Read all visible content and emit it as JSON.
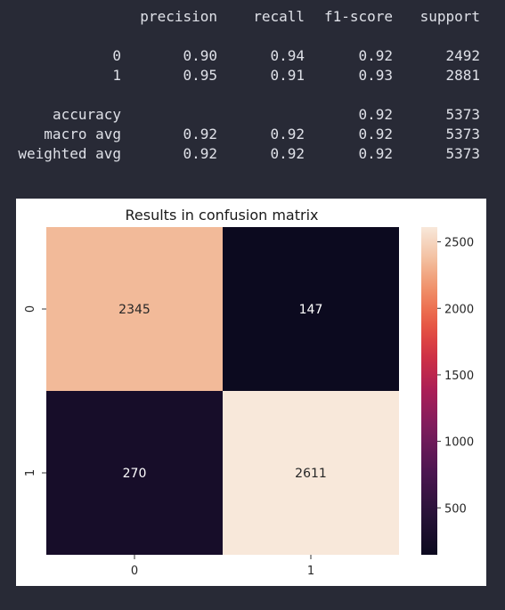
{
  "report": {
    "headers": [
      "precision",
      "recall",
      "f1-score",
      "support"
    ],
    "rows": [
      {
        "label": "0",
        "precision": "0.90",
        "recall": "0.94",
        "f1": "0.92",
        "support": "2492"
      },
      {
        "label": "1",
        "precision": "0.95",
        "recall": "0.91",
        "f1": "0.93",
        "support": "2881"
      },
      {
        "label": "accuracy",
        "precision": "",
        "recall": "",
        "f1": "0.92",
        "support": "5373"
      },
      {
        "label": "macro avg",
        "precision": "0.92",
        "recall": "0.92",
        "f1": "0.92",
        "support": "5373"
      },
      {
        "label": "weighted avg",
        "precision": "0.92",
        "recall": "0.92",
        "f1": "0.92",
        "support": "5373"
      }
    ]
  },
  "chart_data": {
    "type": "heatmap",
    "title": "Results in confusion matrix",
    "xlabel": "",
    "ylabel": "",
    "x_categories": [
      "0",
      "1"
    ],
    "y_categories": [
      "0",
      "1"
    ],
    "values": [
      [
        2345,
        147
      ],
      [
        270,
        2611
      ]
    ],
    "colorbar": {
      "colormap": "rocket",
      "ticks": [
        500,
        1000,
        1500,
        2000,
        2500
      ]
    },
    "colors": {
      "low": "#0c0a1f",
      "high": "#f8e8da"
    }
  }
}
